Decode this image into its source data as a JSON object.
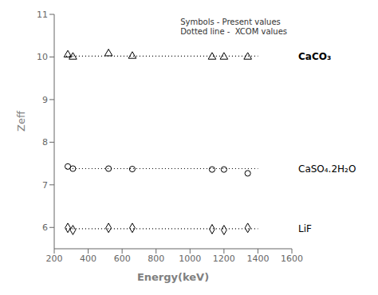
{
  "chart_data": {
    "type": "scatter",
    "xlabel": "Energy(keV)",
    "ylabel": "Zeff",
    "xlim": [
      200,
      1600
    ],
    "ylim": [
      5.5,
      11
    ],
    "xticks": [
      200,
      400,
      600,
      800,
      1000,
      1200,
      1400,
      1600
    ],
    "yticks": [
      6,
      7,
      8,
      9,
      10,
      11
    ],
    "annotations": [
      "Symbols - Present values",
      "Dotted line -  XCOM values"
    ],
    "series": [
      {
        "name": "CaCO₃",
        "color": "black",
        "marker": "triangle",
        "line_style": "dotted",
        "x": [
          280,
          310,
          520,
          660,
          1130,
          1200,
          1340
        ],
        "values": [
          10.05,
          10.0,
          10.08,
          10.02,
          10.0,
          10.0,
          10.0
        ],
        "xcom_x": [
          270,
          1400
        ],
        "xcom_values": [
          10.02,
          10.02
        ]
      },
      {
        "name": "CaSO₄.2H₂O",
        "color": "black",
        "marker": "circle",
        "line_style": "dotted",
        "x": [
          280,
          310,
          520,
          660,
          1130,
          1200,
          1340
        ],
        "values": [
          7.43,
          7.38,
          7.38,
          7.37,
          7.36,
          7.36,
          7.27
        ],
        "xcom_x": [
          270,
          1400
        ],
        "xcom_values": [
          7.38,
          7.38
        ]
      },
      {
        "name": "LiF",
        "color": "black",
        "marker": "diamond",
        "line_style": "dotted",
        "x": [
          280,
          310,
          520,
          660,
          1130,
          1200,
          1340
        ],
        "values": [
          5.99,
          5.94,
          5.99,
          5.99,
          5.96,
          5.94,
          5.99
        ],
        "xcom_x": [
          270,
          1400
        ],
        "xcom_values": [
          5.97,
          5.97
        ]
      }
    ]
  }
}
